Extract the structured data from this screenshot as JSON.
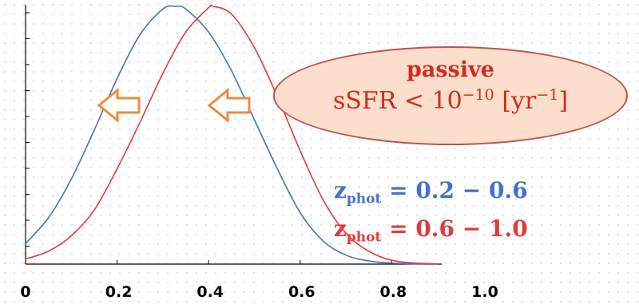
{
  "chart_data": {
    "type": "line",
    "title": "",
    "xlabel": "",
    "ylabel": "",
    "xlim": [
      0.0,
      1.1
    ],
    "x_ticks": [
      "0",
      "0.2",
      "0.4",
      "0.6",
      "0.8",
      "1.0"
    ],
    "x_tick_values": [
      0.0,
      0.2,
      0.4,
      0.6,
      0.8,
      1.0
    ],
    "grid": false,
    "series": [
      {
        "name": "z_phot = 0.2−0.6",
        "color": "#4472c4",
        "x": [
          0.0,
          0.05,
          0.1,
          0.15,
          0.2,
          0.25,
          0.3,
          0.33,
          0.35,
          0.4,
          0.45,
          0.5,
          0.55,
          0.6,
          0.65,
          0.7,
          0.75,
          0.8,
          0.85,
          0.9
        ],
        "y": [
          0.08,
          0.18,
          0.33,
          0.52,
          0.72,
          0.89,
          0.99,
          1.0,
          0.99,
          0.9,
          0.75,
          0.56,
          0.37,
          0.2,
          0.09,
          0.035,
          0.012,
          0.004,
          0.001,
          0.0
        ]
      },
      {
        "name": "z_phot = 0.6−1.0",
        "color": "#e03b3b",
        "x": [
          0.0,
          0.05,
          0.1,
          0.15,
          0.2,
          0.25,
          0.3,
          0.35,
          0.4,
          0.41,
          0.45,
          0.5,
          0.55,
          0.6,
          0.65,
          0.7,
          0.75,
          0.8,
          0.85,
          0.9,
          0.95
        ],
        "y": [
          0.02,
          0.05,
          0.11,
          0.21,
          0.37,
          0.55,
          0.74,
          0.9,
          0.995,
          1.0,
          0.97,
          0.84,
          0.65,
          0.44,
          0.25,
          0.12,
          0.05,
          0.015,
          0.004,
          0.001,
          0.0
        ]
      }
    ],
    "annotations": {
      "callout_title": "passive",
      "callout_formula": {
        "prefix": "sSFR < 10",
        "exp": "−10",
        "unit": " [yr",
        "unit_exp": "−1",
        "close": "]"
      },
      "arrows": {
        "direction": "left",
        "count": 2,
        "color": "#f08a3c"
      },
      "legend": [
        {
          "symbol": "z",
          "sub": "phot",
          "range": "= 0.2 − 0.6",
          "color": "#4472c4"
        },
        {
          "symbol": "z",
          "sub": "phot",
          "range": "= 0.6 − 1.0",
          "color": "#e03b3b"
        }
      ]
    }
  }
}
